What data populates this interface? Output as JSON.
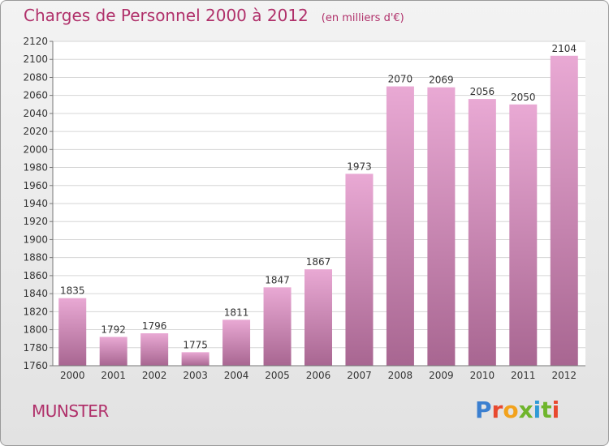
{
  "header": {
    "title": "Charges de Personnel 2000 à 2012",
    "unit": "(en milliers d'€)"
  },
  "footer": {
    "city": "MUNSTER",
    "brand": "Proxiti"
  },
  "chart_data": {
    "type": "bar",
    "title": "Charges de Personnel 2000 à 2012",
    "subtitle": "(en milliers d'€)",
    "xlabel": "",
    "ylabel": "",
    "categories": [
      "2000",
      "2001",
      "2002",
      "2003",
      "2004",
      "2005",
      "2006",
      "2007",
      "2008",
      "2009",
      "2010",
      "2011",
      "2012"
    ],
    "values": [
      1835,
      1792,
      1796,
      1775,
      1811,
      1847,
      1867,
      1973,
      2070,
      2069,
      2056,
      2050,
      2104
    ],
    "ylim": [
      1760,
      2120
    ],
    "yticks": [
      1760,
      1780,
      1800,
      1820,
      1840,
      1860,
      1880,
      1900,
      1920,
      1940,
      1960,
      1980,
      2000,
      2020,
      2040,
      2060,
      2080,
      2100,
      2120
    ],
    "grid": true,
    "legend": "none",
    "colors": {
      "bar_top": "#e9a9d4",
      "bar_bottom": "#a86691",
      "title": "#b0306a"
    }
  }
}
